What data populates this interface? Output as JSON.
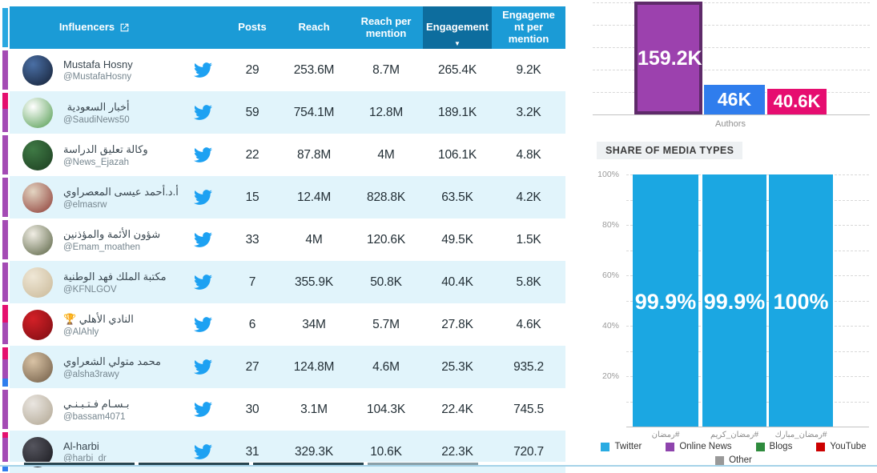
{
  "colors": {
    "header_blue": "#1b9bd6",
    "header_blue_dark": "#0d6d9e",
    "row_alt_bg": "#e1f4fb",
    "twitter_icon": "#1da1f2",
    "indicator": {
      "purple": "#a44bb4",
      "pink": "#e5106e",
      "blue": "#2f7ded",
      "header": "#29a8e0"
    },
    "bottom_edge_segments": [
      "#27454f",
      "#27454f",
      "#27454f",
      "#8aa0a8"
    ],
    "bottom_line": "#a5d3e8"
  },
  "table": {
    "headers": {
      "influencers": "Influencers",
      "posts": "Posts",
      "reach": "Reach",
      "reach_per_mention": "Reach per mention",
      "engagement": "Engagement",
      "engagement_per_mention": "Engagement per mention"
    },
    "sort_icon": "▼",
    "sorted_column": "engagement",
    "rows": [
      {
        "name": "Mustafa Hosny",
        "handle": "@MustafaHosny",
        "posts": "29",
        "reach": "253.6M",
        "reach_per_mention": "8.7M",
        "engagement": "265.4K",
        "engagement_per_mention": "9.2K",
        "avatar_colors": [
          "#4a6fa5",
          "#141f33"
        ],
        "indicator": [
          {
            "color": "purple",
            "frac": 1
          }
        ]
      },
      {
        "name": "أخبار السعودية",
        "handle": "@SaudiNews50",
        "posts": "59",
        "reach": "754.1M",
        "reach_per_mention": "12.8M",
        "engagement": "189.1K",
        "engagement_per_mention": "3.2K",
        "avatar_colors": [
          "#ffffff",
          "#4f9a4c"
        ],
        "indicator": [
          {
            "color": "pink",
            "frac": 0.4
          },
          {
            "color": "purple",
            "frac": 0.6
          }
        ]
      },
      {
        "name": "وكالة تعليق الدراسة",
        "handle": "@News_Ejazah",
        "posts": "22",
        "reach": "87.8M",
        "reach_per_mention": "4M",
        "engagement": "106.1K",
        "engagement_per_mention": "4.8K",
        "avatar_colors": [
          "#3f7a45",
          "#1c3d20"
        ],
        "indicator": [
          {
            "color": "purple",
            "frac": 1
          }
        ]
      },
      {
        "name": "أ.د.أحمد عيسى المعصراوي",
        "handle": "@elmasrw",
        "posts": "15",
        "reach": "12.4M",
        "reach_per_mention": "828.8K",
        "engagement": "63.5K",
        "engagement_per_mention": "4.2K",
        "avatar_colors": [
          "#e3d5c2",
          "#8c3a34"
        ],
        "indicator": [
          {
            "color": "purple",
            "frac": 1
          }
        ]
      },
      {
        "name": "شؤون الأئمة والمؤذنين",
        "handle": "@Emam_moathen",
        "posts": "33",
        "reach": "4M",
        "reach_per_mention": "120.6K",
        "engagement": "49.5K",
        "engagement_per_mention": "1.5K",
        "avatar_colors": [
          "#f1eee5",
          "#56603f"
        ],
        "indicator": [
          {
            "color": "purple",
            "frac": 1
          }
        ]
      },
      {
        "name": "مكتبة الملك فهد الوطنية",
        "handle": "@KFNLGOV",
        "posts": "7",
        "reach": "355.9K",
        "reach_per_mention": "50.8K",
        "engagement": "40.4K",
        "engagement_per_mention": "5.8K",
        "avatar_colors": [
          "#efe7d6",
          "#c9b897"
        ],
        "indicator": [
          {
            "color": "purple",
            "frac": 1
          }
        ]
      },
      {
        "name": "النادي الأهلي 🏆",
        "handle": "@AlAhly",
        "posts": "6",
        "reach": "34M",
        "reach_per_mention": "5.7M",
        "engagement": "27.8K",
        "engagement_per_mention": "4.6K",
        "avatar_colors": [
          "#d32027",
          "#7c0d12"
        ],
        "indicator": [
          {
            "color": "pink",
            "frac": 0.45
          },
          {
            "color": "purple",
            "frac": 0.55
          }
        ]
      },
      {
        "name": "محمد متولي الشعراوي",
        "handle": "@alsha3rawy",
        "posts": "27",
        "reach": "124.8M",
        "reach_per_mention": "4.6M",
        "engagement": "25.3K",
        "engagement_per_mention": "935.2",
        "avatar_colors": [
          "#d9c3a5",
          "#6e5a44"
        ],
        "indicator": [
          {
            "color": "pink",
            "frac": 0.3
          },
          {
            "color": "purple",
            "frac": 0.5
          },
          {
            "color": "blue",
            "frac": 0.2
          }
        ]
      },
      {
        "name": "بـسـام فـتـبـنـي",
        "handle": "@bassam4071",
        "posts": "30",
        "reach": "3.1M",
        "reach_per_mention": "104.3K",
        "engagement": "22.4K",
        "engagement_per_mention": "745.5",
        "avatar_colors": [
          "#eae6e1",
          "#b0a591"
        ],
        "indicator": [
          {
            "color": "purple",
            "frac": 1
          }
        ]
      },
      {
        "name": "Al-harbi",
        "handle": "@harbi_dr",
        "posts": "31",
        "reach": "329.3K",
        "reach_per_mention": "10.6K",
        "engagement": "22.3K",
        "engagement_per_mention": "720.7",
        "avatar_colors": [
          "#55555e",
          "#17171c"
        ],
        "indicator": [
          {
            "color": "pink",
            "frac": 0.15
          },
          {
            "color": "purple",
            "frac": 0.65
          },
          {
            "color": "blue",
            "frac": 0.2
          }
        ]
      }
    ]
  },
  "chart_data": [
    {
      "type": "bar",
      "title": "",
      "xlabel": "Authors",
      "categories": [
        "Authors"
      ],
      "grid": "horizontal-dashed",
      "series": [
        {
          "value": 159200,
          "label": "159.2K",
          "color": "#9c41ae",
          "border_color": "#5e2a69"
        },
        {
          "value": 46000,
          "label": "46K",
          "color": "#2f7ded"
        },
        {
          "value": 40600,
          "label": "40.6K",
          "color": "#e60d70"
        }
      ]
    },
    {
      "type": "bar",
      "title": "SHARE OF MEDIA TYPES",
      "categories": [
        "#رمضان",
        "#رمضان_كريم",
        "#رمضان_مبارك"
      ],
      "values": [
        99.9,
        99.9,
        100
      ],
      "value_labels": [
        "99.9%",
        "99.9%",
        "100%"
      ],
      "ylim": [
        0,
        100
      ],
      "yticks": [
        "100%",
        "80%",
        "60%",
        "40%",
        "20%"
      ],
      "bar_color": "#1ba7e2",
      "grid": "horizontal-dashed",
      "legend_position": "bottom",
      "legend": [
        {
          "label": "Twitter",
          "color": "#29abe2"
        },
        {
          "label": "Online News",
          "color": "#8e44ad"
        },
        {
          "label": "Blogs",
          "color": "#2e8b3d"
        },
        {
          "label": "YouTube",
          "color": "#cc0000"
        },
        {
          "label": "Other",
          "color": "#999999"
        }
      ]
    }
  ]
}
